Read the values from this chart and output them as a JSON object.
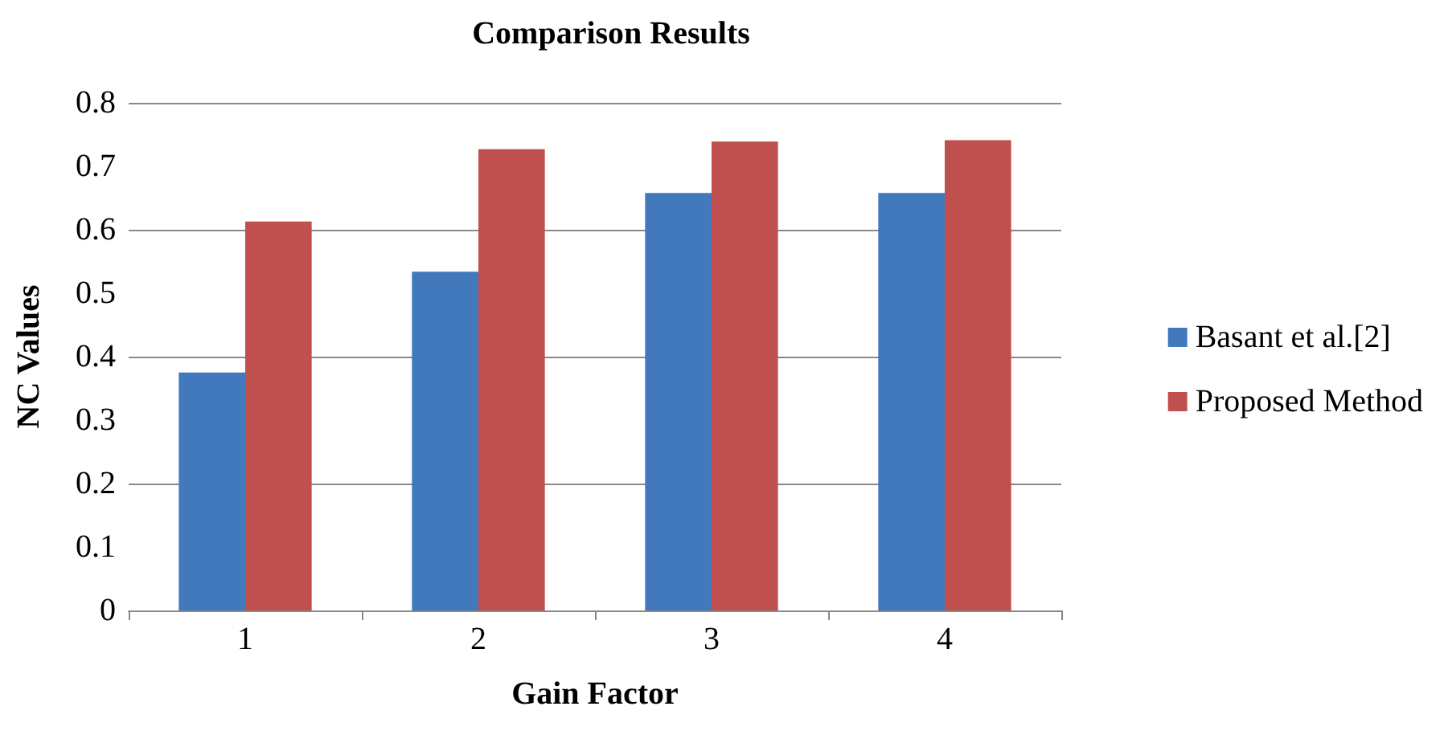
{
  "chart_data": {
    "type": "bar",
    "title": "Comparison Results",
    "xlabel": "Gain Factor",
    "ylabel": "NC Values",
    "categories": [
      "1",
      "2",
      "3",
      "4"
    ],
    "series": [
      {
        "name": "Basant et al.[2]",
        "color": "#4279bd",
        "values": [
          0.375,
          0.534,
          0.658,
          0.658
        ]
      },
      {
        "name": "Proposed Method",
        "color": "#c0504d",
        "values": [
          0.613,
          0.727,
          0.739,
          0.741
        ]
      }
    ],
    "ylim": [
      0,
      0.8
    ],
    "yticks": [
      0,
      0.1,
      0.2,
      0.3,
      0.4,
      0.5,
      0.6,
      0.7,
      0.8
    ],
    "grid": "y",
    "legend": "right"
  }
}
